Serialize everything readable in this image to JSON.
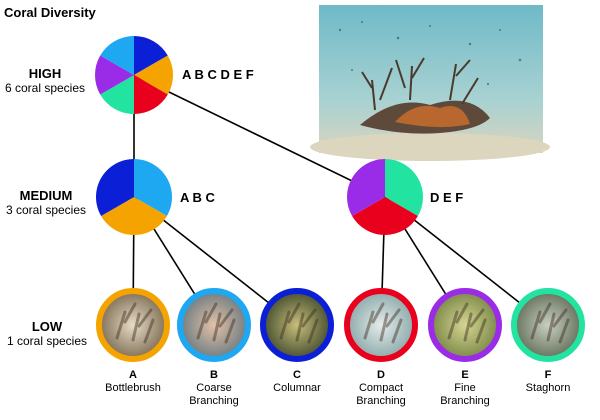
{
  "title": "Coral Diversity",
  "levels": {
    "high": {
      "name": "HIGH",
      "sub": "6 coral species",
      "letters": "A B C D E F"
    },
    "medium": {
      "name": "MEDIUM",
      "sub": "3 coral species",
      "letters_left": "A B C",
      "letters_right": "D E F"
    },
    "low": {
      "name": "LOW",
      "sub": "1 coral species"
    }
  },
  "species": [
    {
      "letter": "A",
      "line1": "Bottlebrush",
      "line2": "",
      "color": "#F5A300"
    },
    {
      "letter": "B",
      "line1": "Coarse",
      "line2": "Branching",
      "color": "#1FA8F2"
    },
    {
      "letter": "C",
      "line1": "Columnar",
      "line2": "",
      "color": "#0A1FD6"
    },
    {
      "letter": "D",
      "line1": "Compact",
      "line2": "Branching",
      "color": "#E8001C"
    },
    {
      "letter": "E",
      "line1": "Fine",
      "line2": "Branching",
      "color": "#9A2BE6"
    },
    {
      "letter": "F",
      "line1": "Staghorn",
      "line2": "",
      "color": "#22E3A0"
    }
  ],
  "colors": {
    "line": "#000000",
    "photo_water_top": "#7FC3CF",
    "photo_water_bottom": "#BFD9CF",
    "photo_sand": "#D9D2B8"
  },
  "icons": {
    "reef_photo": "coral-reef-photo",
    "species_photo": "coral-closeup-photo"
  }
}
